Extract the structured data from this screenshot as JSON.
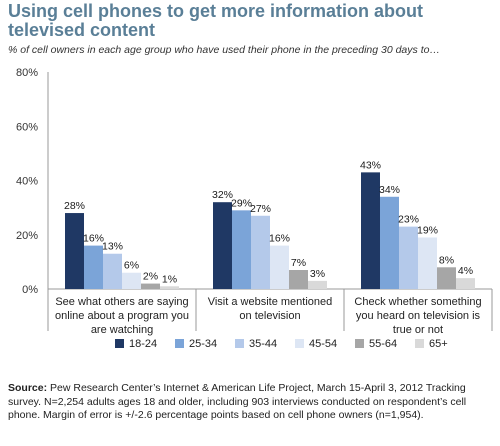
{
  "title": "Using cell phones to get more information about televised content",
  "subtitle": "% of cell owners in each age group who have used their phone in the preceding 30 days to…",
  "source": {
    "label": "Source:",
    "text": "Pew Research Center’s Internet & American Life Project, March 15-April 3, 2012 Tracking survey. N=2,254 adults ages 18 and older, including 903 interviews conducted on respondent’s cell phone. Margin of error is +/-2.6 percentage points based on cell phone owners (n=1,954)."
  },
  "chart_data": {
    "type": "bar",
    "title": "Using cell phones to get more information about televised content",
    "ylabel": "",
    "xlabel": "",
    "ylim": [
      0,
      80
    ],
    "yticks": [
      0,
      20,
      40,
      60,
      80
    ],
    "ytick_labels": [
      "0%",
      "20%",
      "40%",
      "60%",
      "80%"
    ],
    "grid": false,
    "legend_position": "bottom",
    "categories": [
      [
        "See what others are saying",
        "online about a program you",
        "are watching"
      ],
      [
        "Visit a website mentioned",
        "on television"
      ],
      [
        "Check whether something",
        "you heard on television is",
        "true or not"
      ]
    ],
    "series": [
      {
        "name": "18-24",
        "color": "#1f3864",
        "values": [
          28,
          32,
          43
        ]
      },
      {
        "name": "25-34",
        "color": "#7ba4d8",
        "values": [
          16,
          29,
          34
        ]
      },
      {
        "name": "35-44",
        "color": "#b4c9ea",
        "values": [
          13,
          27,
          23
        ]
      },
      {
        "name": "45-54",
        "color": "#dde6f4",
        "values": [
          6,
          16,
          19
        ]
      },
      {
        "name": "55-64",
        "color": "#a6a6a6",
        "values": [
          2,
          7,
          8
        ]
      },
      {
        "name": "65+",
        "color": "#d9d9d9",
        "values": [
          1,
          3,
          4
        ]
      }
    ]
  }
}
